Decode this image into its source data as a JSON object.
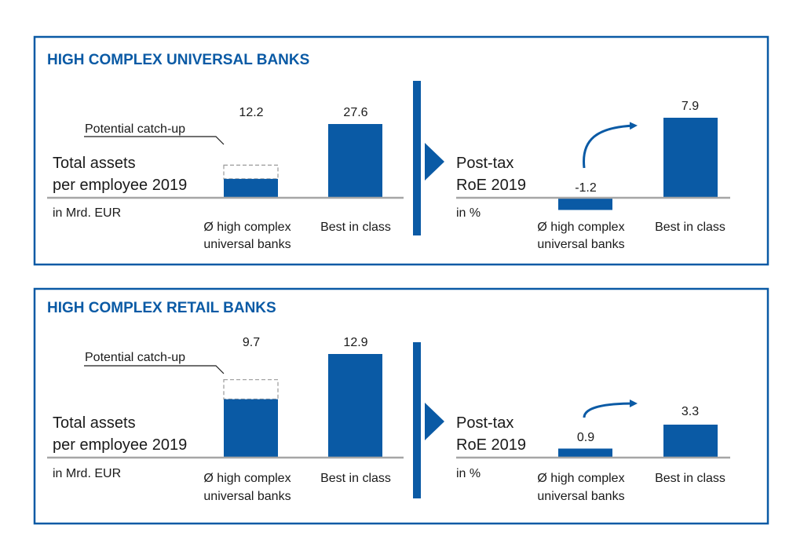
{
  "colors": {
    "accent": "#0a5aa5",
    "axis": "#a6a6a6",
    "text": "#1a1a1a",
    "dashed": "#9a9a9a"
  },
  "panels": [
    {
      "title": "HIGH COMPLEX UNIVERSAL BANKS",
      "left_label_line1": "Total assets",
      "left_label_line2": "per employee 2019",
      "left_unit": "in Mrd. EUR",
      "right_label_line1": "Post-tax",
      "right_label_line2": "RoE 2019",
      "right_unit": "in %",
      "catchup_label": "Potential catch-up",
      "cat1_line1": "Ø high complex",
      "cat1_line2": "universal banks",
      "cat2_line1": "Best in class",
      "left_labels": [
        "12.2",
        "27.6"
      ],
      "right_labels": [
        "-1.2",
        "7.9"
      ]
    },
    {
      "title": "HIGH COMPLEX RETAIL BANKS",
      "left_label_line1": "Total assets",
      "left_label_line2": "per employee 2019",
      "left_unit": "in Mrd. EUR",
      "right_label_line1": "Post-tax",
      "right_label_line2": "RoE 2019",
      "right_unit": "in %",
      "catchup_label": "Potential catch-up",
      "cat1_line1": "Ø high complex",
      "cat1_line2": "universal banks",
      "cat2_line1": "Best in class",
      "left_labels": [
        "9.7",
        "12.9"
      ],
      "right_labels": [
        "0.9",
        "3.3"
      ]
    }
  ],
  "chart_data": [
    {
      "type": "bar",
      "panel": "HIGH COMPLEX UNIVERSAL BANKS",
      "metric": "Total assets per employee 2019",
      "unit": "in Mrd. EUR",
      "categories": [
        "Ø high complex universal banks",
        "Best in class"
      ],
      "values": [
        12.2,
        27.6
      ],
      "filled_share": [
        0.58,
        1.0
      ],
      "annotation": "Potential catch-up"
    },
    {
      "type": "bar",
      "panel": "HIGH COMPLEX UNIVERSAL BANKS",
      "metric": "Post-tax RoE 2019",
      "unit": "in %",
      "categories": [
        "Ø high complex universal banks",
        "Best in class"
      ],
      "values": [
        -1.2,
        7.9
      ]
    },
    {
      "type": "bar",
      "panel": "HIGH COMPLEX RETAIL BANKS",
      "metric": "Total assets per employee 2019",
      "unit": "in Mrd. EUR",
      "categories": [
        "Ø high complex universal banks",
        "Best in class"
      ],
      "values": [
        9.7,
        12.9
      ],
      "filled_share": [
        0.75,
        1.0
      ],
      "annotation": "Potential catch-up"
    },
    {
      "type": "bar",
      "panel": "HIGH COMPLEX RETAIL BANKS",
      "metric": "Post-tax RoE 2019",
      "unit": "in %",
      "categories": [
        "Ø high complex universal banks",
        "Best in class"
      ],
      "values": [
        0.9,
        3.3
      ]
    }
  ]
}
